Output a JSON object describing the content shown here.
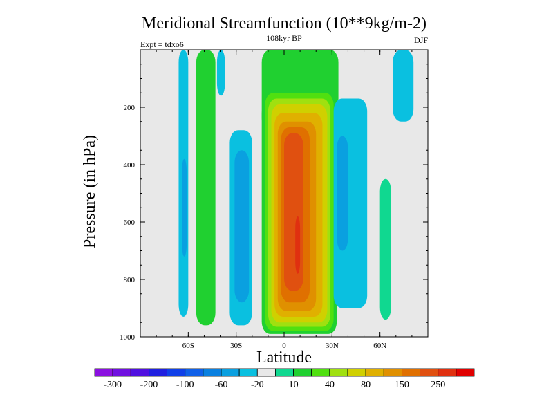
{
  "chart_data": {
    "type": "heatmap",
    "title": "Meridional Streamfunction (10**9kg/m-2)",
    "subtitle_left": "Expt = tdxo6",
    "subtitle_center": "108kyr BP",
    "subtitle_right": "DJF",
    "xlabel": "Latitude",
    "ylabel": "Pressure (in hPa)",
    "x_range": [
      -90,
      90
    ],
    "y_range": [
      0,
      1000
    ],
    "y_inverted": true,
    "x_ticks": [
      {
        "value": -60,
        "label": "60S"
      },
      {
        "value": -30,
        "label": "30S"
      },
      {
        "value": 0,
        "label": "0"
      },
      {
        "value": 30,
        "label": "30N"
      },
      {
        "value": 60,
        "label": "60N"
      }
    ],
    "y_ticks": [
      {
        "value": 200,
        "label": "200"
      },
      {
        "value": 400,
        "label": "400"
      },
      {
        "value": 600,
        "label": "600"
      },
      {
        "value": 800,
        "label": "800"
      },
      {
        "value": 1000,
        "label": "1000"
      }
    ],
    "background_color": "#e8e8e8",
    "colorbar": {
      "colors": [
        "#8a10e0",
        "#7010e0",
        "#5010e0",
        "#2020e0",
        "#1040e8",
        "#1060e8",
        "#0a80e0",
        "#0aa0e0",
        "#0ac0e0",
        "#e8e8e8",
        "#10d890",
        "#20d030",
        "#50e010",
        "#a0e010",
        "#d0d000",
        "#e0b000",
        "#e09000",
        "#e07000",
        "#e05010",
        "#e03010",
        "#e00000"
      ],
      "labels": [
        "-300",
        "-200",
        "-100",
        "-60",
        "-20",
        "10",
        "40",
        "80",
        "150",
        "250"
      ]
    },
    "contour_regions": [
      {
        "lat_min": -66,
        "lat_max": -60,
        "p_top": 0,
        "p_bottom": 930,
        "color": "#0ac0e0"
      },
      {
        "lat_min": -64,
        "lat_max": -61,
        "p_top": 380,
        "p_bottom": 720,
        "color": "#0aa0e0"
      },
      {
        "lat_min": -55,
        "lat_max": -43,
        "p_top": 0,
        "p_bottom": 960,
        "color": "#20d030"
      },
      {
        "lat_min": -42,
        "lat_max": -37,
        "p_top": 0,
        "p_bottom": 160,
        "color": "#0ac0e0"
      },
      {
        "lat_min": -34,
        "lat_max": -20,
        "p_top": 280,
        "p_bottom": 960,
        "color": "#0ac0e0"
      },
      {
        "lat_min": -31,
        "lat_max": -22,
        "p_top": 350,
        "p_bottom": 880,
        "color": "#0aa0e0"
      },
      {
        "lat_min": -14,
        "lat_max": 34,
        "p_top": 0,
        "p_bottom": 280,
        "color": "#20d030"
      },
      {
        "lat_min": -14,
        "lat_max": 33,
        "p_top": 180,
        "p_bottom": 990,
        "color": "#20d030"
      },
      {
        "lat_min": -12,
        "lat_max": 31,
        "p_top": 150,
        "p_bottom": 980,
        "color": "#50e010"
      },
      {
        "lat_min": -10,
        "lat_max": 29,
        "p_top": 170,
        "p_bottom": 965,
        "color": "#a0e010"
      },
      {
        "lat_min": -8,
        "lat_max": 27,
        "p_top": 190,
        "p_bottom": 950,
        "color": "#d0d000"
      },
      {
        "lat_min": -6,
        "lat_max": 24,
        "p_top": 220,
        "p_bottom": 930,
        "color": "#e0b000"
      },
      {
        "lat_min": -4,
        "lat_max": 20,
        "p_top": 250,
        "p_bottom": 910,
        "color": "#e09000"
      },
      {
        "lat_min": -2,
        "lat_max": 16,
        "p_top": 270,
        "p_bottom": 880,
        "color": "#e07000"
      },
      {
        "lat_min": 0,
        "lat_max": 12,
        "p_top": 290,
        "p_bottom": 840,
        "color": "#e05010"
      },
      {
        "lat_min": 7,
        "lat_max": 10,
        "p_top": 580,
        "p_bottom": 780,
        "color": "#e03010"
      },
      {
        "lat_min": 31,
        "lat_max": 52,
        "p_top": 170,
        "p_bottom": 900,
        "color": "#0ac0e0"
      },
      {
        "lat_min": 33,
        "lat_max": 40,
        "p_top": 300,
        "p_bottom": 700,
        "color": "#0aa0e0"
      },
      {
        "lat_min": 60,
        "lat_max": 67,
        "p_top": 450,
        "p_bottom": 940,
        "color": "#10d890"
      },
      {
        "lat_min": 68,
        "lat_max": 81,
        "p_top": 0,
        "p_bottom": 250,
        "color": "#0ac0e0"
      }
    ]
  }
}
